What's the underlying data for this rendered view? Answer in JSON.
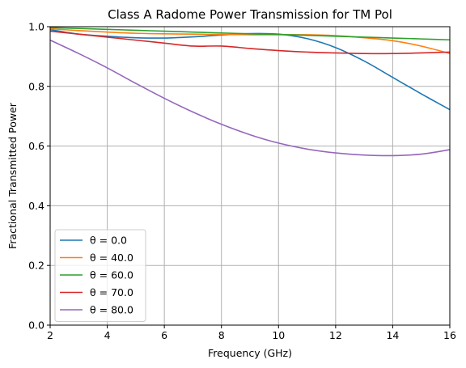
{
  "chart_data": {
    "type": "line",
    "title": "Class A Radome Power Transmission for TM Pol",
    "xlabel": "Frequency (GHz)",
    "ylabel": "Fractional Transmitted Power",
    "xlim": [
      2,
      16
    ],
    "ylim": [
      0.0,
      1.0
    ],
    "xticks": [
      2,
      4,
      6,
      8,
      10,
      12,
      14,
      16
    ],
    "xtick_labels": [
      "2",
      "4",
      "6",
      "8",
      "10",
      "12",
      "14",
      "16"
    ],
    "yticks": [
      0.0,
      0.2,
      0.4,
      0.6,
      0.8,
      1.0
    ],
    "ytick_labels": [
      "0.0",
      "0.2",
      "0.4",
      "0.6",
      "0.8",
      "1.0"
    ],
    "grid": true,
    "legend_position": "lower-left",
    "x": [
      2,
      3,
      4,
      5,
      6,
      7,
      8,
      9,
      10,
      11,
      12,
      13,
      14,
      15,
      16
    ],
    "series": [
      {
        "name": "θ = 0.0",
        "color": "#1f77b4",
        "values": [
          0.99,
          0.975,
          0.968,
          0.963,
          0.962,
          0.966,
          0.972,
          0.977,
          0.975,
          0.96,
          0.93,
          0.885,
          0.83,
          0.775,
          0.722
        ]
      },
      {
        "name": "θ = 40.0",
        "color": "#ff7f0e",
        "values": [
          0.993,
          0.987,
          0.982,
          0.978,
          0.976,
          0.975,
          0.974,
          0.973,
          0.973,
          0.973,
          0.97,
          0.963,
          0.953,
          0.935,
          0.91
        ]
      },
      {
        "name": "θ = 60.0",
        "color": "#2ca02c",
        "values": [
          0.997,
          0.994,
          0.991,
          0.988,
          0.985,
          0.982,
          0.979,
          0.976,
          0.974,
          0.971,
          0.968,
          0.965,
          0.962,
          0.959,
          0.956
        ]
      },
      {
        "name": "θ = 70.0",
        "color": "#d62728",
        "values": [
          0.985,
          0.975,
          0.965,
          0.955,
          0.945,
          0.935,
          0.935,
          0.927,
          0.92,
          0.915,
          0.912,
          0.91,
          0.91,
          0.912,
          0.915
        ]
      },
      {
        "name": "θ = 80.0",
        "color": "#9467bd",
        "values": [
          0.955,
          0.91,
          0.862,
          0.81,
          0.76,
          0.714,
          0.673,
          0.638,
          0.61,
          0.59,
          0.577,
          0.57,
          0.568,
          0.573,
          0.588
        ]
      }
    ]
  }
}
